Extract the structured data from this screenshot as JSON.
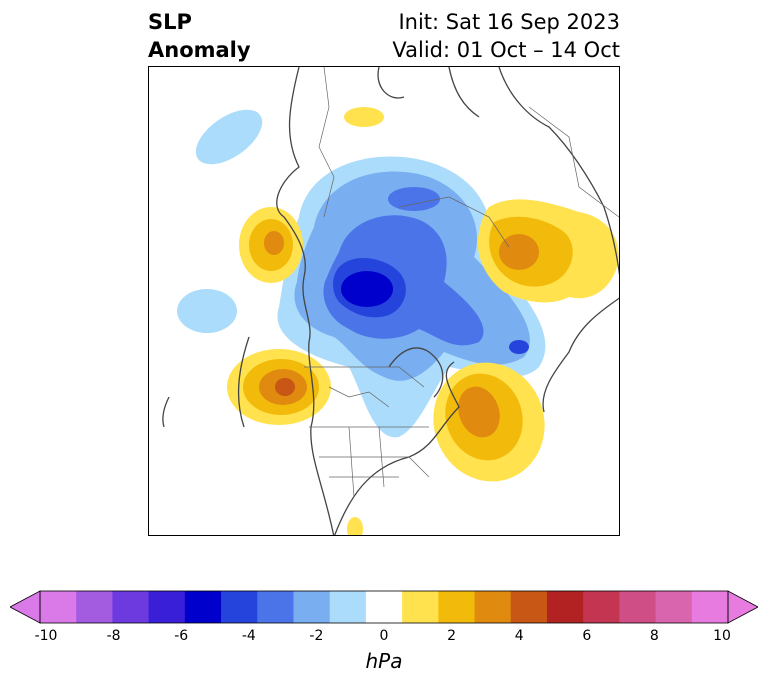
{
  "title": {
    "line1": "SLP",
    "line2": "Anomaly",
    "init": "Init: Sat 16 Sep 2023",
    "valid": "Valid: 01 Oct – 14 Oct"
  },
  "colorbar": {
    "unit": "hPa",
    "ticks": [
      "-10",
      "-8",
      "-6",
      "-4",
      "-2",
      "0",
      "2",
      "4",
      "6",
      "8",
      "10"
    ],
    "colors": [
      "#d97ae8",
      "#a35be0",
      "#6c3ade",
      "#3a1fd8",
      "#0000cc",
      "#2544dc",
      "#4a74e8",
      "#79aef0",
      "#acdcfc",
      "#ffffff",
      "#ffe24d",
      "#f2bb0c",
      "#e08a10",
      "#c85614",
      "#b22222",
      "#c43552",
      "#d04e86",
      "#d965ae",
      "#e87be0"
    ],
    "under_color": "#d97ae8",
    "over_color": "#e87be0"
  },
  "map": {
    "projection": "polar stereographic (North Pole)",
    "features": [
      "coastlines",
      "country borders",
      "US state borders"
    ]
  }
}
